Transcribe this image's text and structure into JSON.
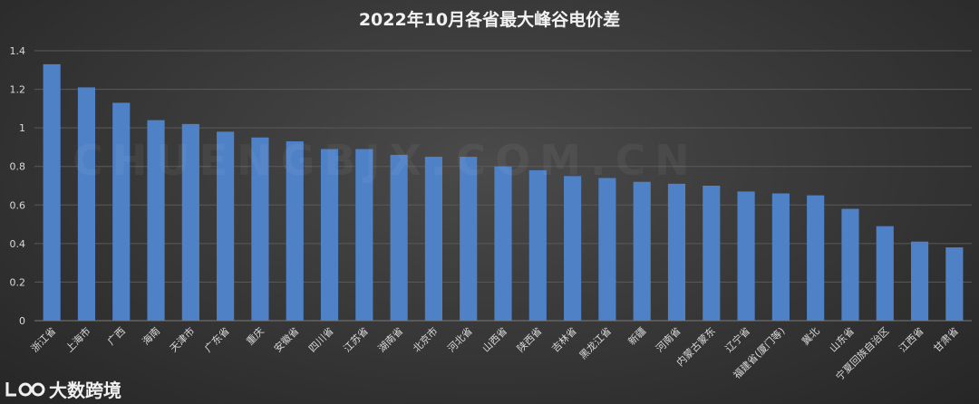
{
  "chart_data": {
    "type": "bar",
    "title": "2022年10月各省最大峰谷电价差",
    "categories": [
      "浙江省",
      "上海市",
      "广西",
      "海南",
      "天津市",
      "广东省",
      "重庆",
      "安徽省",
      "四川省",
      "江苏省",
      "湖南省",
      "北京市",
      "河北省",
      "山西省",
      "陕西省",
      "吉林省",
      "黑龙江省",
      "新疆",
      "河南省",
      "内蒙古蒙东",
      "辽宁省",
      "福建省(厦门等)",
      "冀北",
      "山东省",
      "宁夏回族自治区",
      "江西省",
      "甘肃省"
    ],
    "values": [
      1.33,
      1.21,
      1.13,
      1.04,
      1.02,
      0.98,
      0.95,
      0.93,
      0.89,
      0.89,
      0.86,
      0.85,
      0.85,
      0.8,
      0.78,
      0.75,
      0.74,
      0.72,
      0.71,
      0.7,
      0.67,
      0.66,
      0.65,
      0.58,
      0.49,
      0.41,
      0.38
    ],
    "ylim": [
      0,
      1.4
    ],
    "yticks": [
      "0",
      "0.2",
      "0.4",
      "0.6",
      "0.8",
      "1",
      "1.2",
      "1.4"
    ],
    "grid": true,
    "bar_color": "#4f81c7"
  },
  "logo": {
    "text": "大数跨境",
    "mark_icon": "link-logo-icon"
  },
  "watermark": {
    "text": "CHUENGBJX.COM.CN"
  }
}
